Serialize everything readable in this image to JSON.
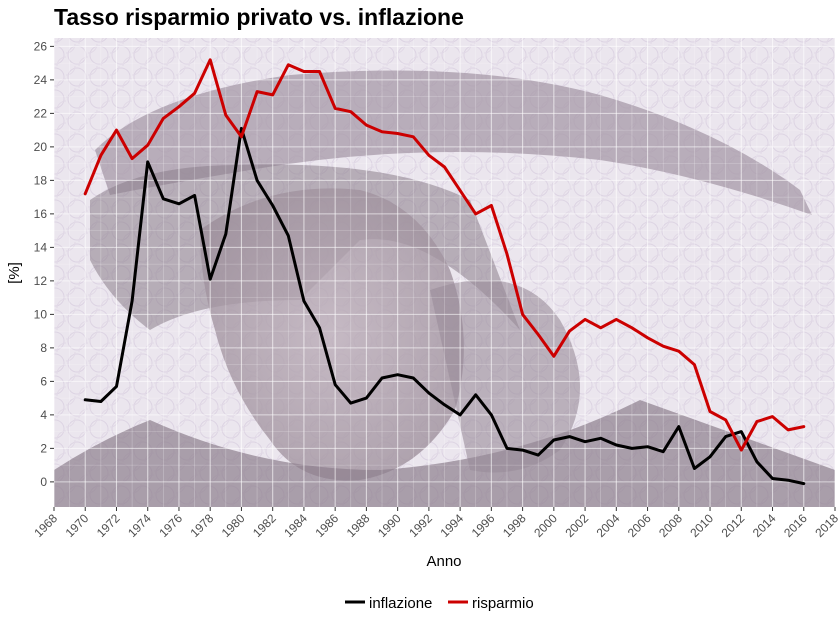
{
  "chart_data": {
    "type": "line",
    "title": "Tasso risparmio privato vs. inflazione",
    "xlabel": "Anno",
    "ylabel": "[%]",
    "xlim": [
      1968,
      2018
    ],
    "ylim": [
      -1.5,
      26.5
    ],
    "x_ticks": [
      1968,
      1970,
      1972,
      1974,
      1976,
      1978,
      1980,
      1982,
      1984,
      1986,
      1988,
      1990,
      1992,
      1994,
      1996,
      1998,
      2000,
      2002,
      2004,
      2006,
      2008,
      2010,
      2012,
      2014,
      2016,
      2018
    ],
    "y_ticks": [
      0,
      2,
      4,
      6,
      8,
      10,
      12,
      14,
      16,
      18,
      20,
      22,
      24,
      26
    ],
    "grid": true,
    "legend_position": "bottom",
    "background": "banknote portrait image behind plot panel",
    "series": [
      {
        "name": "inflazione",
        "color": "#000000",
        "x": [
          1970,
          1971,
          1972,
          1973,
          1974,
          1975,
          1976,
          1977,
          1978,
          1979,
          1980,
          1981,
          1982,
          1983,
          1984,
          1985,
          1986,
          1987,
          1988,
          1989,
          1990,
          1991,
          1992,
          1993,
          1994,
          1995,
          1996,
          1997,
          1998,
          1999,
          2000,
          2001,
          2002,
          2003,
          2004,
          2005,
          2006,
          2007,
          2008,
          2009,
          2010,
          2011,
          2012,
          2013,
          2014,
          2015,
          2016
        ],
        "values": [
          4.9,
          4.8,
          5.7,
          10.8,
          19.1,
          16.9,
          16.6,
          17.1,
          12.1,
          14.8,
          21.1,
          18.0,
          16.5,
          14.7,
          10.8,
          9.2,
          5.8,
          4.7,
          5.0,
          6.2,
          6.4,
          6.2,
          5.3,
          4.6,
          4.0,
          5.2,
          4.0,
          2.0,
          1.9,
          1.6,
          2.5,
          2.7,
          2.4,
          2.6,
          2.2,
          2.0,
          2.1,
          1.8,
          3.3,
          0.8,
          1.5,
          2.7,
          3.0,
          1.2,
          0.2,
          0.1,
          -0.1
        ]
      },
      {
        "name": "risparmio",
        "color": "#cc0000",
        "x": [
          1970,
          1971,
          1972,
          1973,
          1974,
          1975,
          1976,
          1977,
          1978,
          1979,
          1980,
          1981,
          1982,
          1983,
          1984,
          1985,
          1986,
          1987,
          1988,
          1989,
          1990,
          1991,
          1992,
          1993,
          1994,
          1995,
          1996,
          1997,
          1998,
          1999,
          2000,
          2001,
          2002,
          2003,
          2004,
          2005,
          2006,
          2007,
          2008,
          2009,
          2010,
          2011,
          2012,
          2013,
          2014,
          2015,
          2016
        ],
        "values": [
          17.2,
          19.5,
          21.0,
          19.3,
          20.1,
          21.7,
          22.4,
          23.2,
          25.2,
          21.9,
          20.6,
          23.3,
          23.1,
          24.9,
          24.5,
          24.5,
          22.3,
          22.1,
          21.3,
          20.9,
          20.8,
          20.6,
          19.5,
          18.8,
          17.4,
          16.0,
          16.5,
          13.6,
          10.0,
          8.8,
          7.5,
          9.0,
          9.7,
          9.2,
          9.7,
          9.2,
          8.6,
          8.1,
          7.8,
          7.0,
          4.2,
          3.7,
          1.9,
          3.6,
          3.9,
          3.1,
          3.3
        ]
      }
    ]
  }
}
